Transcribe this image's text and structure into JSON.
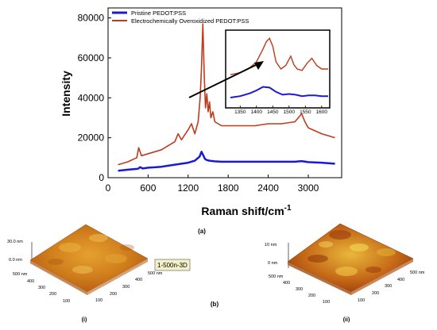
{
  "chart_data": [
    {
      "type": "line",
      "panel_label": "(a)",
      "xlabel": "Raman shift/cm",
      "xlabel_sup": "-1",
      "ylabel": "Intensity",
      "xlim": [
        0,
        3500
      ],
      "ylim": [
        0,
        85000
      ],
      "x_ticks": [
        0,
        600,
        1200,
        1800,
        2400,
        3000
      ],
      "y_ticks": [
        0,
        20000,
        40000,
        60000,
        80000
      ],
      "legend_position": "top",
      "series": [
        {
          "name": "Pristine PEDOT:PSS",
          "color": "#1a1ad6",
          "x": [
            150,
            300,
            450,
            480,
            520,
            600,
            700,
            800,
            900,
            1000,
            1100,
            1200,
            1300,
            1370,
            1400,
            1430,
            1450,
            1480,
            1520,
            1600,
            1700,
            1800,
            2000,
            2400,
            2800,
            2900,
            3000,
            3200,
            3400
          ],
          "y": [
            3500,
            4000,
            4500,
            5300,
            4600,
            5000,
            5200,
            5500,
            6000,
            6500,
            7000,
            7500,
            8500,
            10500,
            13000,
            11000,
            9500,
            8800,
            8500,
            8200,
            8000,
            8000,
            8000,
            8000,
            8000,
            8300,
            7800,
            7500,
            7000
          ]
        },
        {
          "name": "Electrochemically Overoxidized PEDOT:PSS",
          "color": "#c03a1c",
          "x": [
            150,
            300,
            430,
            460,
            500,
            600,
            700,
            800,
            900,
            1000,
            1050,
            1100,
            1200,
            1250,
            1300,
            1350,
            1380,
            1400,
            1420,
            1440,
            1460,
            1480,
            1500,
            1520,
            1540,
            1570,
            1600,
            1650,
            1700,
            1800,
            2000,
            2200,
            2400,
            2600,
            2800,
            2850,
            2900,
            2950,
            3000,
            3200,
            3400
          ],
          "y": [
            6500,
            8000,
            10000,
            15000,
            11000,
            12000,
            13000,
            14000,
            16000,
            18000,
            22000,
            19000,
            24000,
            27000,
            22000,
            28000,
            40000,
            55000,
            77000,
            52000,
            35000,
            42000,
            33000,
            38000,
            30000,
            33000,
            28000,
            27000,
            26000,
            26000,
            26000,
            26000,
            27000,
            27000,
            28000,
            30000,
            32000,
            28000,
            25000,
            22000,
            20000
          ]
        }
      ],
      "inset": {
        "x_range": [
          1320,
          1620
        ],
        "x_ticks": [
          1350,
          1400,
          1450,
          1500,
          1550,
          1600
        ],
        "series": [
          {
            "name": "Pristine PEDOT:PSS",
            "x": [
              1320,
              1350,
              1380,
              1400,
              1420,
              1440,
              1460,
              1480,
              1500,
              1520,
              1540,
              1560,
              1580,
              1600,
              1620
            ],
            "y": [
              0.1,
              0.12,
              0.16,
              0.2,
              0.25,
              0.24,
              0.18,
              0.14,
              0.15,
              0.14,
              0.12,
              0.13,
              0.13,
              0.12,
              0.12
            ]
          },
          {
            "name": "Electrochemically Overoxidized PEDOT:PSS",
            "x": [
              1320,
              1350,
              1380,
              1400,
              1420,
              1430,
              1440,
              1450,
              1460,
              1475,
              1490,
              1505,
              1515,
              1525,
              1540,
              1555,
              1570,
              1585,
              1600,
              1620
            ],
            "y": [
              0.42,
              0.45,
              0.52,
              0.6,
              0.78,
              0.88,
              0.93,
              0.82,
              0.6,
              0.5,
              0.55,
              0.68,
              0.56,
              0.5,
              0.48,
              0.58,
              0.65,
              0.55,
              0.5,
              0.5
            ]
          }
        ]
      }
    }
  ],
  "afm": {
    "panel_label": "(b)",
    "left": {
      "label": "(i)",
      "z_top": "30.0 nm",
      "z_bottom": "0.0 nm",
      "axis_left": [
        "500 nm",
        "400",
        "300",
        "200",
        "100"
      ],
      "axis_right": [
        "500 nm",
        "400",
        "300",
        "200",
        "100"
      ],
      "tag": "1-500n-3D"
    },
    "right": {
      "label": "(ii)",
      "z_top": "10 nm",
      "z_bottom": "0 nm",
      "axis_left": [
        "500 nm",
        "400",
        "300",
        "200",
        "100"
      ],
      "axis_right": [
        "500 nm",
        "400",
        "300",
        "200",
        "100"
      ]
    }
  }
}
